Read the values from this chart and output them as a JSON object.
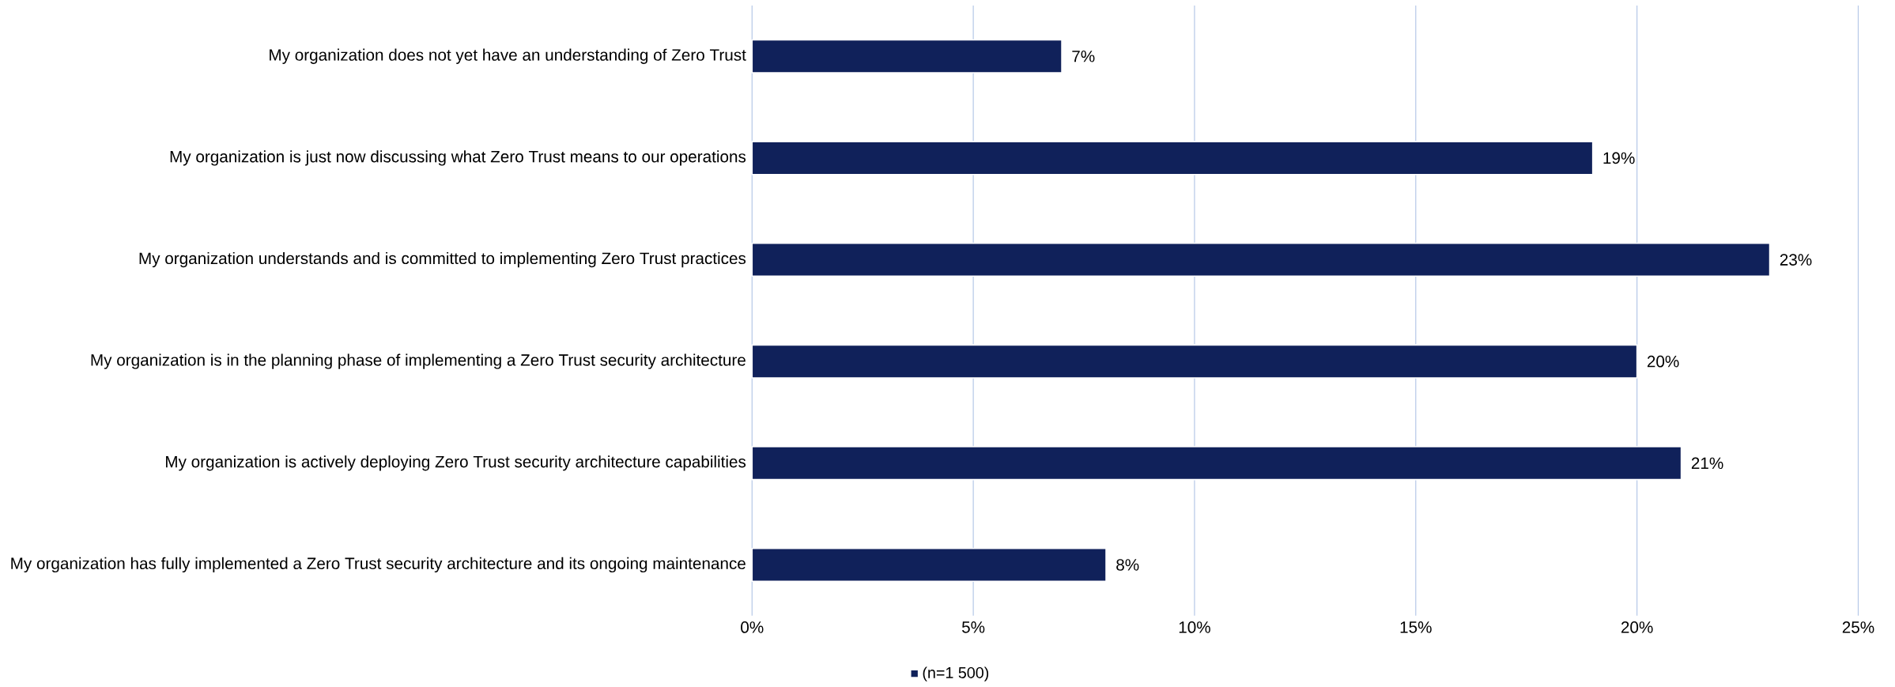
{
  "chart_data": {
    "type": "bar",
    "orientation": "horizontal",
    "categories": [
      "My organization does not yet have an understanding of Zero Trust",
      "My organization is just now discussing what Zero Trust means to our operations",
      "My organization understands and is committed to implementing Zero Trust practices",
      "My organization is in the planning phase of implementing a Zero Trust security architecture",
      "My organization is actively deploying Zero Trust security architecture capabilities",
      "My organization has fully implemented a Zero Trust security architecture and its ongoing maintenance"
    ],
    "series": [
      {
        "name": "(n=1 500)",
        "color": "#10215a",
        "values": [
          7,
          19,
          23,
          20,
          21,
          8
        ],
        "value_labels": [
          "7%",
          "19%",
          "23%",
          "20%",
          "21%",
          "8%"
        ]
      }
    ],
    "xlim": [
      0,
      25
    ],
    "xticks": [
      {
        "value": 0,
        "label": "0%"
      },
      {
        "value": 5,
        "label": "5%"
      },
      {
        "value": 10,
        "label": "10%"
      },
      {
        "value": 15,
        "label": "15%"
      },
      {
        "value": 20,
        "label": "20%"
      },
      {
        "value": 25,
        "label": "25%"
      }
    ],
    "grid": "x",
    "legend": "bottom"
  }
}
